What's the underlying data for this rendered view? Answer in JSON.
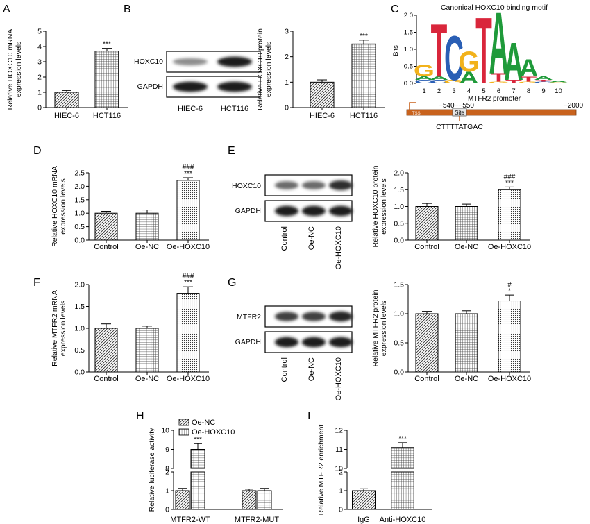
{
  "panels": [
    "A",
    "B",
    "C",
    "D",
    "E",
    "F",
    "G",
    "H",
    "I"
  ],
  "chart_data": [
    {
      "id": "A",
      "type": "bar",
      "categories": [
        "HIEC-6",
        "HCT116"
      ],
      "values": [
        1.0,
        3.7
      ],
      "errors": [
        0.12,
        0.18
      ],
      "patterns": [
        "hatch",
        "grid"
      ],
      "significance": [
        "",
        "***"
      ],
      "ylabel_lines": [
        "Relative HOXC10 mRNA",
        "expression levels"
      ],
      "ylim": [
        0,
        5
      ],
      "yticks": [
        "0",
        "1",
        "2",
        "3",
        "4",
        "5"
      ]
    },
    {
      "id": "B",
      "type": "bar",
      "categories": [
        "HIEC-6",
        "HCT116"
      ],
      "values": [
        1.0,
        2.5
      ],
      "errors": [
        0.09,
        0.15
      ],
      "patterns": [
        "hatch",
        "grid"
      ],
      "significance": [
        "",
        "***"
      ],
      "ylabel_lines": [
        "Relative HOXC10 protein",
        "expression levels"
      ],
      "ylim": [
        0,
        3
      ],
      "yticks": [
        "0",
        "1",
        "2",
        "3"
      ]
    },
    {
      "id": "D",
      "type": "bar",
      "categories": [
        "Control",
        "Oe-NC",
        "Oe-HOXC10"
      ],
      "values": [
        1.0,
        1.0,
        2.22
      ],
      "errors": [
        0.07,
        0.12,
        0.1
      ],
      "patterns": [
        "hatch",
        "grid",
        "dots"
      ],
      "significance": [
        "",
        "",
        "***"
      ],
      "significance2": [
        "",
        "",
        "###"
      ],
      "ylabel_lines": [
        "Relative HOXC10 mRNA",
        "expression levels"
      ],
      "ylim": [
        0,
        2.5
      ],
      "yticks": [
        "0.0",
        "0.5",
        "1.0",
        "1.5",
        "2.0",
        "2.5"
      ]
    },
    {
      "id": "E",
      "type": "bar",
      "categories": [
        "Control",
        "Oe-NC",
        "Oe-HOXC10"
      ],
      "values": [
        1.0,
        1.0,
        1.5
      ],
      "errors": [
        0.09,
        0.07,
        0.08
      ],
      "patterns": [
        "hatch",
        "grid",
        "dots"
      ],
      "significance": [
        "",
        "",
        "***"
      ],
      "significance2": [
        "",
        "",
        "###"
      ],
      "ylabel_lines": [
        "Relative HOXC10 protein",
        "expression levels"
      ],
      "ylim": [
        0,
        2.0
      ],
      "yticks": [
        "0.0",
        "0.5",
        "1.0",
        "1.5",
        "2.0"
      ]
    },
    {
      "id": "F",
      "type": "bar",
      "categories": [
        "Control",
        "Oe-NC",
        "Oe-HOXC10"
      ],
      "values": [
        1.0,
        1.0,
        1.8
      ],
      "errors": [
        0.1,
        0.05,
        0.15
      ],
      "patterns": [
        "hatch",
        "grid",
        "dots"
      ],
      "significance": [
        "",
        "",
        "***"
      ],
      "significance2": [
        "",
        "",
        "###"
      ],
      "ylabel_lines": [
        "Relative MTFR2 mRNA",
        "expression levels"
      ],
      "ylim": [
        0,
        2.0
      ],
      "yticks": [
        "0.0",
        "0.5",
        "1.0",
        "1.5",
        "2.0"
      ]
    },
    {
      "id": "G",
      "type": "bar",
      "categories": [
        "Control",
        "Oe-NC",
        "Oe-HOXC10"
      ],
      "values": [
        1.0,
        1.0,
        1.22
      ],
      "errors": [
        0.04,
        0.05,
        0.1
      ],
      "patterns": [
        "hatch",
        "grid",
        "dots"
      ],
      "significance": [
        "",
        "",
        "*"
      ],
      "significance2": [
        "",
        "",
        "#"
      ],
      "ylabel_lines": [
        "Relative MTFR2 protein",
        "expression levels"
      ],
      "ylim": [
        0,
        1.5
      ],
      "yticks": [
        "0.0",
        "0.5",
        "1.0",
        "1.5"
      ]
    },
    {
      "id": "H",
      "type": "bar",
      "categories": [
        "MTFR2-WT",
        "MTFR2-MUT"
      ],
      "series": [
        {
          "name": "Oe-NC",
          "values": [
            1.0,
            1.0
          ],
          "errors": [
            0.12,
            0.08
          ],
          "pattern": "hatch"
        },
        {
          "name": "Oe-HOXC10",
          "values": [
            9.0,
            1.0
          ],
          "errors": [
            0.3,
            0.12
          ],
          "pattern": "grid"
        }
      ],
      "significance": [
        "***",
        ""
      ],
      "ylabel": "Relative luciferase activity",
      "axis_break": {
        "lower": [
          0,
          2
        ],
        "upper": [
          8,
          10
        ]
      },
      "yticks_lower": [
        "0",
        "1",
        "2"
      ],
      "yticks_upper": [
        "8",
        "9",
        "10"
      ],
      "legend": "top-left"
    },
    {
      "id": "I",
      "type": "bar",
      "categories": [
        "IgG",
        "Anti-HOXC10"
      ],
      "values": [
        1.0,
        11.1
      ],
      "errors": [
        0.1,
        0.25
      ],
      "patterns": [
        "hatch",
        "grid"
      ],
      "significance": [
        "",
        "***"
      ],
      "ylabel": "Relative MTFR2 enrichment",
      "axis_break": {
        "lower": [
          0,
          2
        ],
        "upper": [
          10,
          12
        ]
      },
      "yticks_lower": [
        "0",
        "1",
        "2"
      ],
      "yticks_upper": [
        "10",
        "11",
        "12"
      ]
    }
  ],
  "blots": {
    "B": {
      "rows": [
        "HOXC10",
        "GAPDH"
      ],
      "lanes": [
        "HIEC-6",
        "HCT116"
      ],
      "bands": [
        [
          0.35,
          1.0
        ],
        [
          1.0,
          1.0
        ]
      ]
    },
    "E": {
      "rows": [
        "HOXC10",
        "GAPDH"
      ],
      "lanes": [
        "Control",
        "Oe-NC",
        "Oe-HOXC10"
      ],
      "bands": [
        [
          0.55,
          0.55,
          0.9
        ],
        [
          1.0,
          1.0,
          1.0
        ]
      ]
    },
    "G": {
      "rows": [
        "MTFR2",
        "GAPDH"
      ],
      "lanes": [
        "Control",
        "Oe-NC",
        "Oe-HOXC10"
      ],
      "bands": [
        [
          0.8,
          0.8,
          0.95
        ],
        [
          1.0,
          1.0,
          1.0
        ]
      ]
    }
  },
  "motif": {
    "title": "Canonical HOXC10 binding motif",
    "ylabel": "Bits",
    "yticks": [
      "0.0",
      "0.5",
      "1.0",
      "1.5",
      "2.0"
    ],
    "positions": [
      "1",
      "2",
      "3",
      "4",
      "5",
      "6",
      "7",
      "8",
      "9",
      "10"
    ],
    "xlabel": "MTFR2 promoter",
    "promoter": {
      "tss": "TSS",
      "left": "−540−−550",
      "right": "−2000",
      "site": "Site",
      "sequence": "CTTTTATGAC"
    }
  },
  "colors": {
    "A": "#1f9a3a",
    "C": "#2a5fb5",
    "G": "#f2b21b",
    "T": "#d9263b",
    "promoter": "#c8621d"
  }
}
